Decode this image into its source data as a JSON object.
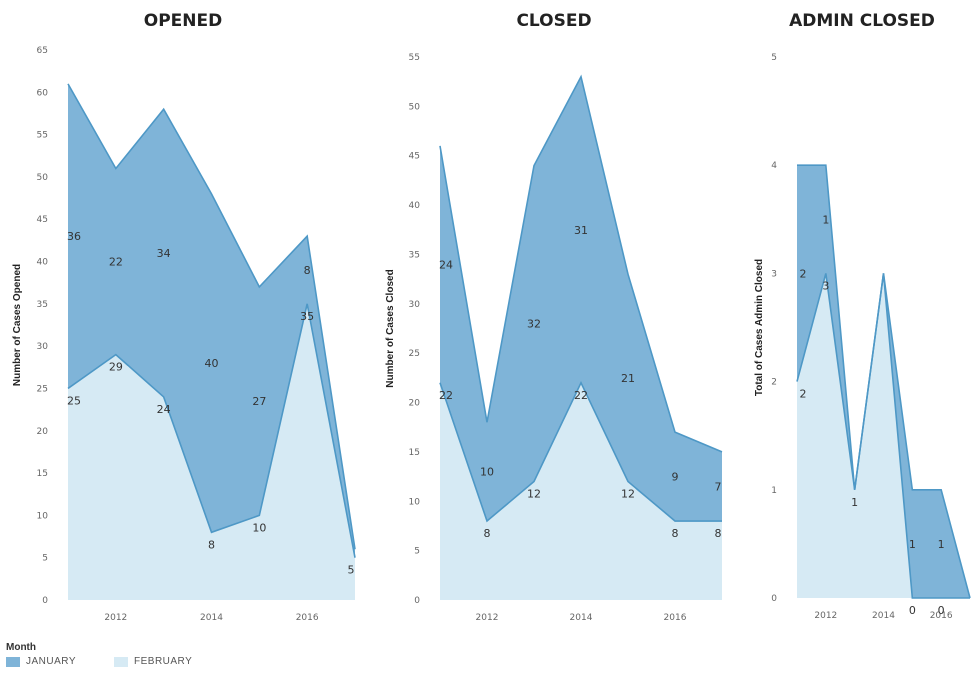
{
  "legend": {
    "title": "Month",
    "items": [
      {
        "label": "JANUARY",
        "color": "#7FB4D8"
      },
      {
        "label": "FEBRUARY",
        "color": "#D6EAF4"
      }
    ]
  },
  "colors": {
    "january_fill": "#7FB4D8",
    "january_line": "#4E98C6",
    "february_fill": "#D6EAF4",
    "february_line": "#A7CDE4"
  },
  "chart_data": [
    {
      "type": "area",
      "stacked": true,
      "title": "OPENED",
      "ylabel": "Number of Cases Opened",
      "x": [
        2011,
        2012,
        2013,
        2014,
        2015,
        2016,
        2017
      ],
      "x_ticks": [
        2012,
        2014,
        2016
      ],
      "ylim": [
        0,
        65
      ],
      "y_ticks": [
        0,
        5,
        10,
        15,
        20,
        25,
        30,
        35,
        40,
        45,
        50,
        55,
        60,
        65
      ],
      "series": [
        {
          "name": "FEBRUARY",
          "values": [
            25,
            29,
            24,
            8,
            10,
            35,
            5
          ],
          "labels": [
            "25",
            "29",
            "24",
            "8",
            "10",
            "35",
            "5"
          ]
        },
        {
          "name": "JANUARY",
          "values": [
            36,
            22,
            34,
            40,
            27,
            8,
            1
          ],
          "labels": [
            "36",
            "22",
            "34",
            "40",
            "27",
            "8",
            ""
          ]
        }
      ]
    },
    {
      "type": "area",
      "stacked": true,
      "title": "CLOSED",
      "ylabel": "Number of Cases Closed",
      "x": [
        2011,
        2012,
        2013,
        2014,
        2015,
        2016,
        2017
      ],
      "x_ticks": [
        2012,
        2014,
        2016
      ],
      "ylim": [
        0,
        55
      ],
      "y_ticks": [
        0,
        5,
        10,
        15,
        20,
        25,
        30,
        35,
        40,
        45,
        50,
        55
      ],
      "series": [
        {
          "name": "FEBRUARY",
          "values": [
            22,
            8,
            12,
            22,
            12,
            8,
            8
          ],
          "labels": [
            "22",
            "8",
            "12",
            "22",
            "12",
            "8",
            "8"
          ]
        },
        {
          "name": "JANUARY",
          "values": [
            24,
            10,
            32,
            31,
            21,
            9,
            7
          ],
          "labels": [
            "24",
            "10",
            "32",
            "31",
            "21",
            "9",
            "7"
          ]
        }
      ]
    },
    {
      "type": "area",
      "stacked": true,
      "title": "ADMIN CLOSED",
      "ylabel": "Total of Cases Admin Closed",
      "x": [
        2011,
        2012,
        2013,
        2014,
        2015,
        2016,
        2017
      ],
      "x_ticks": [
        2012,
        2014,
        2016
      ],
      "ylim": [
        0,
        5
      ],
      "y_ticks": [
        0,
        1,
        2,
        3,
        4,
        5
      ],
      "series": [
        {
          "name": "FEBRUARY",
          "values": [
            2,
            3,
            1,
            3,
            0,
            0,
            0
          ],
          "labels": [
            "2",
            "3",
            "1",
            "",
            "0",
            "0",
            ""
          ]
        },
        {
          "name": "JANUARY",
          "values": [
            2,
            1,
            0,
            0,
            1,
            1,
            0
          ],
          "labels": [
            "2",
            "1",
            "",
            "",
            "1",
            "1",
            ""
          ]
        }
      ]
    }
  ]
}
